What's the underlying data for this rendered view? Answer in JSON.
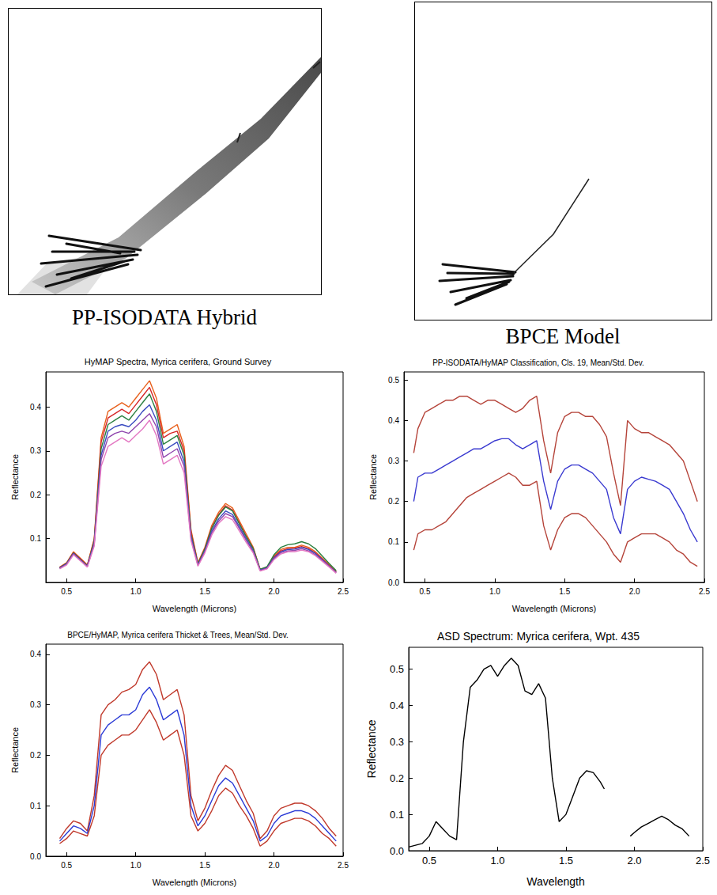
{
  "figure": {
    "panels": [
      {
        "caption": "PP-ISODATA Hybrid"
      },
      {
        "caption": "BPCE Model"
      }
    ]
  },
  "chart_data": [
    {
      "type": "line",
      "title": "HyMAP Spectra, Myrica cerifera, Ground Survey",
      "xlabel": "Wavelength (Microns)",
      "ylabel": "Reflectance",
      "x": [
        0.45,
        0.5,
        0.55,
        0.6,
        0.65,
        0.7,
        0.75,
        0.8,
        0.85,
        0.9,
        0.95,
        1.0,
        1.05,
        1.1,
        1.15,
        1.2,
        1.25,
        1.3,
        1.35,
        1.4,
        1.45,
        1.5,
        1.55,
        1.6,
        1.65,
        1.7,
        1.75,
        1.8,
        1.85,
        1.9,
        1.95,
        2.0,
        2.05,
        2.1,
        2.15,
        2.2,
        2.25,
        2.3,
        2.35,
        2.4,
        2.45
      ],
      "series": [
        {
          "color": "#e8601c",
          "values": [
            0.035,
            0.045,
            0.07,
            0.055,
            0.04,
            0.1,
            0.33,
            0.39,
            0.4,
            0.41,
            0.4,
            0.42,
            0.44,
            0.46,
            0.42,
            0.34,
            0.35,
            0.36,
            0.31,
            0.12,
            0.045,
            0.08,
            0.13,
            0.16,
            0.18,
            0.17,
            0.14,
            0.11,
            0.08,
            0.03,
            0.035,
            0.06,
            0.075,
            0.08,
            0.08,
            0.085,
            0.08,
            0.07,
            0.055,
            0.04,
            0.025
          ]
        },
        {
          "color": "#d62728",
          "values": [
            0.034,
            0.044,
            0.068,
            0.054,
            0.039,
            0.097,
            0.32,
            0.375,
            0.385,
            0.395,
            0.385,
            0.405,
            0.425,
            0.445,
            0.405,
            0.33,
            0.34,
            0.345,
            0.3,
            0.115,
            0.043,
            0.077,
            0.125,
            0.155,
            0.175,
            0.165,
            0.135,
            0.105,
            0.077,
            0.029,
            0.034,
            0.058,
            0.072,
            0.077,
            0.078,
            0.082,
            0.077,
            0.067,
            0.053,
            0.038,
            0.024
          ]
        },
        {
          "color": "#2a7f3f",
          "values": [
            0.033,
            0.043,
            0.067,
            0.052,
            0.038,
            0.094,
            0.305,
            0.36,
            0.37,
            0.38,
            0.37,
            0.39,
            0.41,
            0.43,
            0.39,
            0.315,
            0.325,
            0.335,
            0.29,
            0.11,
            0.042,
            0.076,
            0.123,
            0.153,
            0.172,
            0.163,
            0.133,
            0.104,
            0.077,
            0.03,
            0.036,
            0.063,
            0.08,
            0.086,
            0.088,
            0.093,
            0.088,
            0.077,
            0.06,
            0.043,
            0.027
          ]
        },
        {
          "color": "#3b4cc0",
          "values": [
            0.033,
            0.042,
            0.066,
            0.051,
            0.037,
            0.09,
            0.29,
            0.345,
            0.355,
            0.36,
            0.355,
            0.37,
            0.39,
            0.405,
            0.37,
            0.3,
            0.31,
            0.32,
            0.275,
            0.105,
            0.04,
            0.072,
            0.117,
            0.145,
            0.163,
            0.155,
            0.127,
            0.099,
            0.072,
            0.028,
            0.033,
            0.056,
            0.07,
            0.075,
            0.076,
            0.08,
            0.075,
            0.066,
            0.052,
            0.037,
            0.023
          ]
        },
        {
          "color": "#8e44ad",
          "values": [
            0.032,
            0.041,
            0.065,
            0.05,
            0.036,
            0.087,
            0.28,
            0.33,
            0.34,
            0.345,
            0.34,
            0.355,
            0.37,
            0.385,
            0.355,
            0.285,
            0.295,
            0.305,
            0.265,
            0.1,
            0.039,
            0.07,
            0.113,
            0.14,
            0.157,
            0.15,
            0.123,
            0.096,
            0.07,
            0.027,
            0.032,
            0.054,
            0.068,
            0.072,
            0.073,
            0.077,
            0.072,
            0.063,
            0.05,
            0.036,
            0.022
          ]
        },
        {
          "color": "#e377c2",
          "values": [
            0.031,
            0.04,
            0.063,
            0.049,
            0.035,
            0.083,
            0.265,
            0.31,
            0.32,
            0.33,
            0.32,
            0.335,
            0.35,
            0.37,
            0.335,
            0.27,
            0.28,
            0.29,
            0.25,
            0.095,
            0.037,
            0.067,
            0.108,
            0.135,
            0.15,
            0.143,
            0.117,
            0.091,
            0.067,
            0.026,
            0.031,
            0.052,
            0.065,
            0.07,
            0.07,
            0.074,
            0.07,
            0.061,
            0.048,
            0.035,
            0.021
          ]
        }
      ],
      "xlim": [
        0.35,
        2.5
      ],
      "ylim": [
        0,
        0.48
      ],
      "xticks": [
        0.5,
        {
          "value": 1,
          "label": "1.0"
        },
        1.5,
        {
          "value": 2,
          "label": "2.0"
        },
        2.5
      ],
      "yticks": [
        0.1,
        0.2,
        0.3,
        0.4
      ],
      "grid": false
    },
    {
      "type": "line",
      "title": "PP-ISODATA/HyMAP Classification, Cls. 19, Mean/Std. Dev.",
      "xlabel": "Wavelength (Microns)",
      "ylabel": "Reflectance",
      "x": [
        0.42,
        0.45,
        0.5,
        0.55,
        0.6,
        0.65,
        0.7,
        0.75,
        0.8,
        0.85,
        0.9,
        0.95,
        1.0,
        1.05,
        1.1,
        1.15,
        1.2,
        1.25,
        1.3,
        1.35,
        1.4,
        1.45,
        1.5,
        1.55,
        1.6,
        1.65,
        1.7,
        1.75,
        1.8,
        1.85,
        1.9,
        1.95,
        2.0,
        2.05,
        2.1,
        2.15,
        2.2,
        2.25,
        2.3,
        2.35,
        2.4,
        2.45
      ],
      "series": [
        {
          "color": "#b5443a",
          "values": [
            0.32,
            0.38,
            0.42,
            0.43,
            0.44,
            0.45,
            0.45,
            0.46,
            0.46,
            0.45,
            0.44,
            0.45,
            0.45,
            0.44,
            0.43,
            0.42,
            0.43,
            0.45,
            0.46,
            0.35,
            0.27,
            0.37,
            0.41,
            0.42,
            0.42,
            0.41,
            0.41,
            0.39,
            0.36,
            0.27,
            0.19,
            0.4,
            0.38,
            0.37,
            0.37,
            0.36,
            0.35,
            0.34,
            0.32,
            0.3,
            0.25,
            0.2
          ]
        },
        {
          "color": "#3a3ad0",
          "values": [
            0.2,
            0.26,
            0.27,
            0.27,
            0.28,
            0.29,
            0.3,
            0.31,
            0.32,
            0.33,
            0.33,
            0.34,
            0.35,
            0.355,
            0.355,
            0.34,
            0.33,
            0.34,
            0.35,
            0.25,
            0.18,
            0.25,
            0.28,
            0.29,
            0.29,
            0.28,
            0.27,
            0.25,
            0.23,
            0.16,
            0.12,
            0.23,
            0.25,
            0.26,
            0.255,
            0.25,
            0.24,
            0.23,
            0.2,
            0.17,
            0.13,
            0.1
          ]
        },
        {
          "color": "#b5443a",
          "values": [
            0.08,
            0.12,
            0.13,
            0.13,
            0.14,
            0.15,
            0.17,
            0.19,
            0.21,
            0.22,
            0.23,
            0.24,
            0.25,
            0.26,
            0.27,
            0.26,
            0.24,
            0.24,
            0.25,
            0.14,
            0.08,
            0.13,
            0.16,
            0.17,
            0.17,
            0.16,
            0.14,
            0.12,
            0.1,
            0.07,
            0.05,
            0.1,
            0.11,
            0.12,
            0.12,
            0.12,
            0.11,
            0.1,
            0.08,
            0.07,
            0.05,
            0.04
          ]
        }
      ],
      "xlim": [
        0.35,
        2.5
      ],
      "ylim": [
        0,
        0.52
      ],
      "xticks": [
        0.5,
        {
          "value": 1,
          "label": "1.0"
        },
        1.5,
        {
          "value": 2,
          "label": "2.0"
        },
        2.5
      ],
      "yticks": [
        {
          "value": 0,
          "label": "0.0"
        },
        0.1,
        0.2,
        0.3,
        0.4,
        0.5
      ],
      "grid": false
    },
    {
      "type": "line",
      "title": "BPCE/HyMAP, Myrica cerifera Thicket & Trees, Mean/Std. Dev.",
      "xlabel": "Wavelength (Microns)",
      "ylabel": "Reflectance",
      "x": [
        0.45,
        0.5,
        0.55,
        0.6,
        0.65,
        0.7,
        0.75,
        0.8,
        0.85,
        0.9,
        0.95,
        1.0,
        1.05,
        1.1,
        1.15,
        1.2,
        1.25,
        1.3,
        1.35,
        1.4,
        1.45,
        1.5,
        1.55,
        1.6,
        1.65,
        1.7,
        1.75,
        1.8,
        1.85,
        1.9,
        1.95,
        2.0,
        2.05,
        2.1,
        2.15,
        2.2,
        2.25,
        2.3,
        2.35,
        2.4,
        2.45
      ],
      "series": [
        {
          "color": "#c0392b",
          "values": [
            0.035,
            0.055,
            0.07,
            0.065,
            0.05,
            0.12,
            0.28,
            0.3,
            0.31,
            0.325,
            0.33,
            0.34,
            0.37,
            0.385,
            0.36,
            0.31,
            0.32,
            0.33,
            0.28,
            0.12,
            0.07,
            0.095,
            0.13,
            0.16,
            0.18,
            0.17,
            0.14,
            0.11,
            0.085,
            0.035,
            0.05,
            0.08,
            0.095,
            0.1,
            0.105,
            0.105,
            0.1,
            0.09,
            0.075,
            0.055,
            0.04
          ]
        },
        {
          "color": "#2b3bd6",
          "values": [
            0.03,
            0.045,
            0.06,
            0.055,
            0.045,
            0.1,
            0.24,
            0.26,
            0.27,
            0.28,
            0.28,
            0.29,
            0.32,
            0.335,
            0.31,
            0.27,
            0.28,
            0.29,
            0.24,
            0.1,
            0.06,
            0.08,
            0.11,
            0.14,
            0.155,
            0.145,
            0.12,
            0.095,
            0.07,
            0.03,
            0.04,
            0.065,
            0.08,
            0.085,
            0.09,
            0.09,
            0.085,
            0.075,
            0.06,
            0.045,
            0.03
          ]
        },
        {
          "color": "#c0392b",
          "values": [
            0.025,
            0.035,
            0.05,
            0.045,
            0.04,
            0.08,
            0.2,
            0.22,
            0.23,
            0.24,
            0.24,
            0.25,
            0.27,
            0.29,
            0.265,
            0.23,
            0.24,
            0.25,
            0.2,
            0.08,
            0.05,
            0.065,
            0.09,
            0.12,
            0.135,
            0.125,
            0.1,
            0.08,
            0.055,
            0.02,
            0.03,
            0.05,
            0.065,
            0.07,
            0.075,
            0.075,
            0.07,
            0.06,
            0.045,
            0.035,
            0.02
          ]
        }
      ],
      "xlim": [
        0.35,
        2.5
      ],
      "ylim": [
        0,
        0.42
      ],
      "xticks": [
        0.5,
        {
          "value": 1,
          "label": "1.0"
        },
        1.5,
        {
          "value": 2,
          "label": "2.0"
        },
        2.5
      ],
      "yticks": [
        {
          "value": 0,
          "label": "0.0"
        },
        0.1,
        0.2,
        0.3,
        0.4
      ],
      "grid": false
    },
    {
      "type": "line",
      "title": "ASD Spectrum: Myrica cerifera, Wpt. 435",
      "xlabel": "Wavelength",
      "ylabel": "Reflectance",
      "x": [
        0.35,
        0.4,
        0.45,
        0.5,
        0.55,
        0.6,
        0.65,
        0.7,
        0.75,
        0.8,
        0.85,
        0.9,
        0.95,
        1.0,
        1.05,
        1.1,
        1.15,
        1.2,
        1.25,
        1.3,
        1.35,
        1.4,
        1.45,
        1.5,
        1.55,
        1.6,
        1.65,
        1.7,
        1.75,
        1.78,
        1.85,
        1.97,
        2.0,
        2.05,
        2.1,
        2.15,
        2.2,
        2.25,
        2.3,
        2.35,
        2.4
      ],
      "series": [
        {
          "color": "#000000",
          "values": [
            0.01,
            0.015,
            0.02,
            0.04,
            0.08,
            0.06,
            0.04,
            0.03,
            0.3,
            0.45,
            0.47,
            0.5,
            0.51,
            0.48,
            0.51,
            0.53,
            0.51,
            0.44,
            0.43,
            0.46,
            0.42,
            0.2,
            0.08,
            0.1,
            0.15,
            0.2,
            0.22,
            0.215,
            0.19,
            0.17,
            null,
            0.04,
            0.05,
            0.065,
            0.075,
            0.085,
            0.095,
            0.085,
            0.07,
            0.06,
            0.04
          ]
        }
      ],
      "xlim": [
        0.35,
        2.5
      ],
      "ylim": [
        0,
        0.56
      ],
      "xticks": [
        0.5,
        {
          "value": 1,
          "label": "1.0"
        },
        1.5,
        {
          "value": 2,
          "label": "2.0"
        },
        2.5
      ],
      "yticks": [
        {
          "value": 0,
          "label": "0.0"
        },
        0.1,
        0.2,
        0.3,
        0.4,
        0.5
      ],
      "grid": false
    }
  ]
}
